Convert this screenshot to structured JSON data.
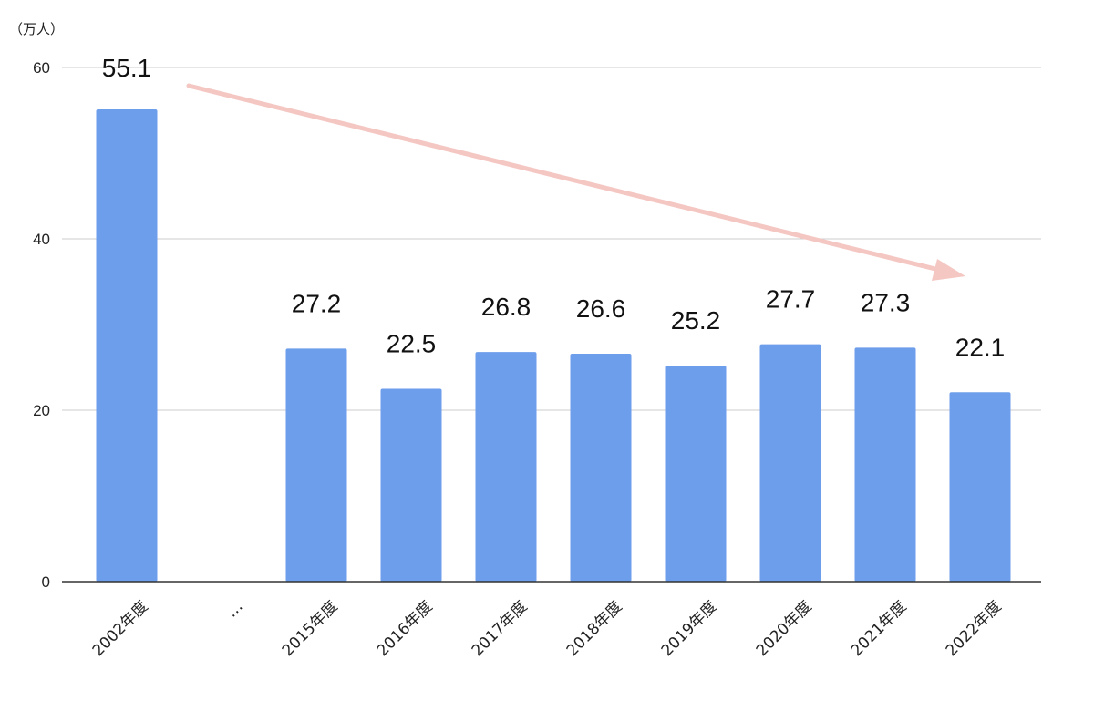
{
  "chart_data": {
    "type": "bar",
    "unit_label": "（万人）",
    "categories": [
      "2002年度",
      "…",
      "2015年度",
      "2016年度",
      "2017年度",
      "2018年度",
      "2019年度",
      "2020年度",
      "2021年度",
      "2022年度"
    ],
    "values": [
      55.1,
      null,
      27.2,
      22.5,
      26.8,
      26.6,
      25.2,
      27.7,
      27.3,
      22.1
    ],
    "data_labels": [
      "55.1",
      "",
      "27.2",
      "22.5",
      "26.8",
      "26.6",
      "25.2",
      "27.7",
      "27.3",
      "22.1"
    ],
    "ylim": [
      0,
      60
    ],
    "yticks": [
      0,
      20,
      40,
      60
    ],
    "ytick_labels": [
      "0",
      "20",
      "40",
      "60"
    ],
    "grid": true,
    "legend": "none",
    "bar_color": "#6d9eeb",
    "grid_color": "#cccccc",
    "axis_color": "#333333",
    "trend_arrow_color": "#f4c7c3"
  }
}
